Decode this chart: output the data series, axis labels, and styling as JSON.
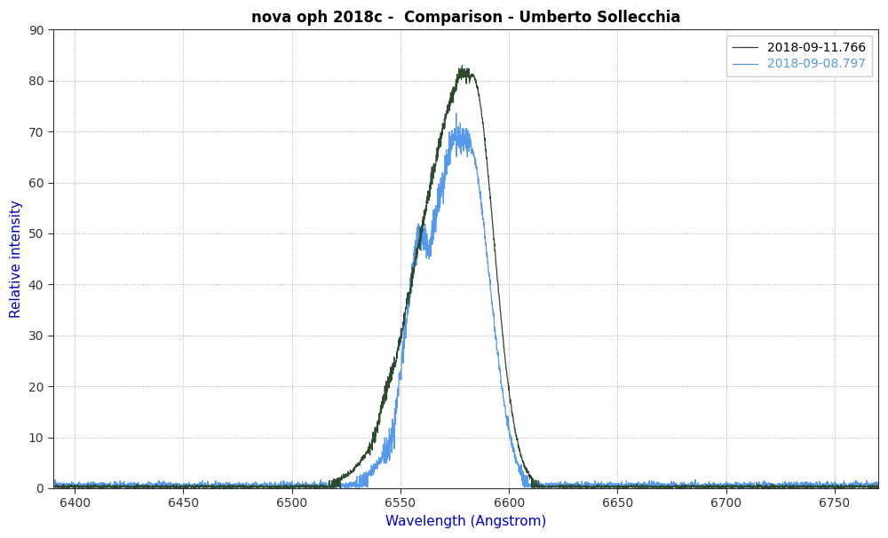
{
  "title": "nova oph 2018c -  Comparison - Umberto Sollecchia",
  "xlabel": "Wavelength (Angstrom)",
  "ylabel": "Relative intensity",
  "xlim": [
    6390,
    6770
  ],
  "ylim": [
    0,
    90
  ],
  "yticks": [
    0,
    10,
    20,
    30,
    40,
    50,
    60,
    70,
    80,
    90
  ],
  "xticks": [
    6400,
    6450,
    6500,
    6550,
    6600,
    6650,
    6700,
    6750
  ],
  "background_color": "#ffffff",
  "grid_color": "#9999aa",
  "series": [
    {
      "label": "2018-09-11.766",
      "color": "#2d4a2d",
      "linewidth": 0.9
    },
    {
      "label": "2018-09-08.797",
      "color": "#5599ee",
      "linewidth": 0.9
    }
  ],
  "title_fontsize": 12,
  "axis_label_color": "#0000cc",
  "axis_tick_color": "#333333",
  "legend_label_colors": [
    "#2d4a2d",
    "#5599ee"
  ],
  "legend_text_colors": [
    "#000000",
    "#5599ee"
  ]
}
